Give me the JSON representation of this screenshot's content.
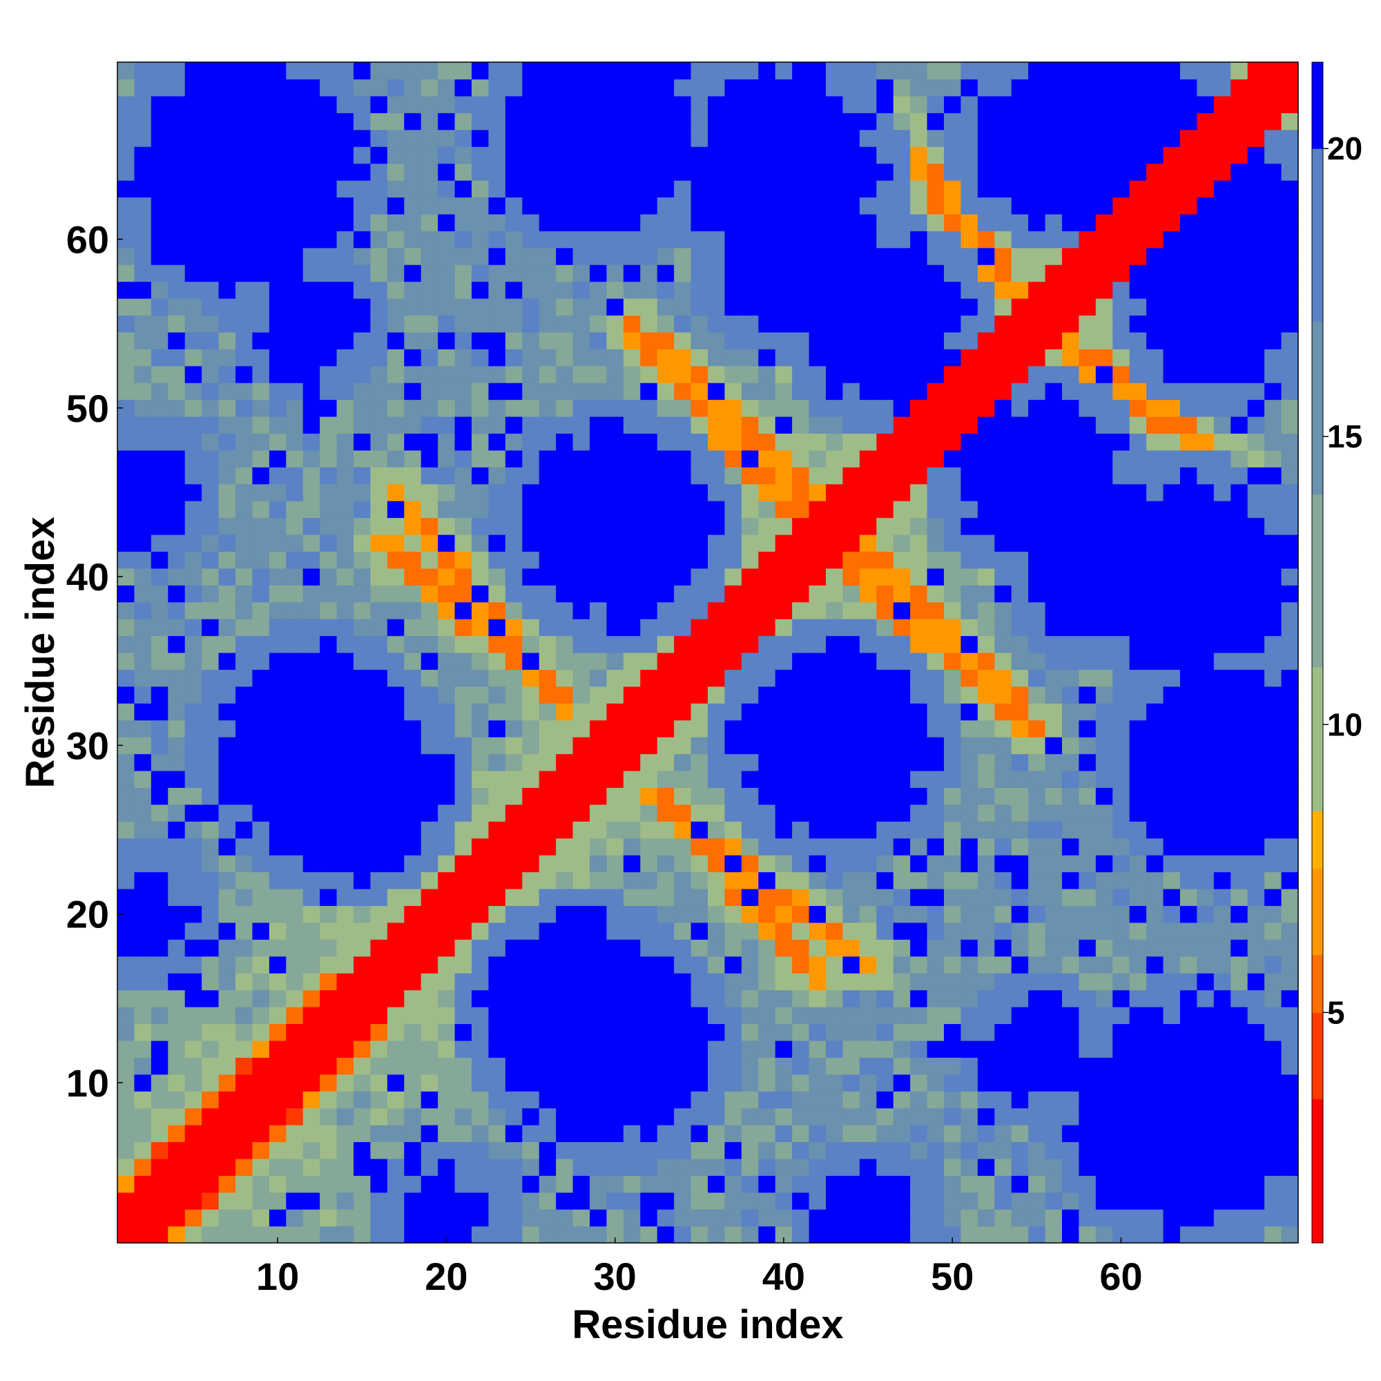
{
  "chart_data": {
    "type": "heatmap",
    "title": "",
    "xlabel": "Residue index",
    "ylabel": "Residue index",
    "n_residues": 70,
    "xlim": [
      0.5,
      70.5
    ],
    "ylim": [
      0.5,
      70.5
    ],
    "x_ticks": [
      10,
      20,
      30,
      40,
      50,
      60
    ],
    "y_ticks": [
      10,
      20,
      30,
      40,
      50,
      60
    ],
    "colorbar": {
      "range": [
        1,
        21.5
      ],
      "ticks": [
        5,
        10,
        15,
        20
      ],
      "colors": [
        {
          "upto": 3.5,
          "color": "#ff0000"
        },
        {
          "upto": 5.0,
          "color": "#ff3a00"
        },
        {
          "upto": 6.0,
          "color": "#ff6e00"
        },
        {
          "upto": 7.5,
          "color": "#ff9800"
        },
        {
          "upto": 8.5,
          "color": "#ffb000"
        },
        {
          "upto": 11.0,
          "color": "#9fbc88"
        },
        {
          "upto": 14.0,
          "color": "#85a898"
        },
        {
          "upto": 17.0,
          "color": "#6a91ad"
        },
        {
          "upto": 20.0,
          "color": "#5a82c4"
        },
        {
          "upto": 21.5,
          "color": "#0000ff"
        }
      ]
    },
    "structure": {
      "diagonal_contact_distance": 2,
      "parallel_bands": [
        {
          "from": [
            1,
            1
          ],
          "to": [
            13,
            13
          ],
          "offset": 3,
          "value": 5.5
        },
        {
          "from": [
            26,
            26
          ],
          "to": [
            44,
            44
          ],
          "offset": 2,
          "value": 6.5
        },
        {
          "from": [
            52,
            52
          ],
          "to": [
            68,
            68
          ],
          "offset": 2,
          "value": 6
        }
      ],
      "antiparallel_bands": [
        {
          "from": [
            16,
            42
          ],
          "to": [
            27,
            33
          ],
          "value": 6
        },
        {
          "from": [
            32,
            27
          ],
          "to": [
            45,
            17
          ],
          "value": 6
        },
        {
          "from": [
            32,
            54
          ],
          "to": [
            44,
            42
          ],
          "value": 6
        },
        {
          "from": [
            43,
            41
          ],
          "to": [
            55,
            31
          ],
          "value": 6
        },
        {
          "from": [
            46,
            67
          ],
          "to": [
            55,
            55
          ],
          "value": 6
        },
        {
          "from": [
            55,
            55
          ],
          "to": [
            66,
            47
          ],
          "value": 6
        }
      ],
      "far_regions": [
        {
          "center": [
            8,
            64
          ],
          "radius": 7
        },
        {
          "center": [
            40,
            64
          ],
          "radius": 6
        },
        {
          "center": [
            60,
            66
          ],
          "radius": 6
        },
        {
          "center": [
            12,
            30
          ],
          "radius": 6
        },
        {
          "center": [
            43,
            30
          ],
          "radius": 6
        },
        {
          "center": [
            30,
            43
          ],
          "radius": 6
        },
        {
          "center": [
            46,
            55
          ],
          "radius": 5
        },
        {
          "center": [
            59,
            41
          ],
          "radius": 5
        },
        {
          "center": [
            28,
            14
          ],
          "radius": 6
        },
        {
          "center": [
            66,
            29
          ],
          "radius": 6
        },
        {
          "center": [
            66,
            56
          ],
          "radius": 5
        },
        {
          "center": [
            66,
            8
          ],
          "radius": 5
        },
        {
          "center": [
            2,
            20
          ],
          "radius": 3
        },
        {
          "center": [
            2,
            45
          ],
          "radius": 3
        },
        {
          "center": [
            55,
            12
          ],
          "radius": 3
        }
      ]
    }
  }
}
